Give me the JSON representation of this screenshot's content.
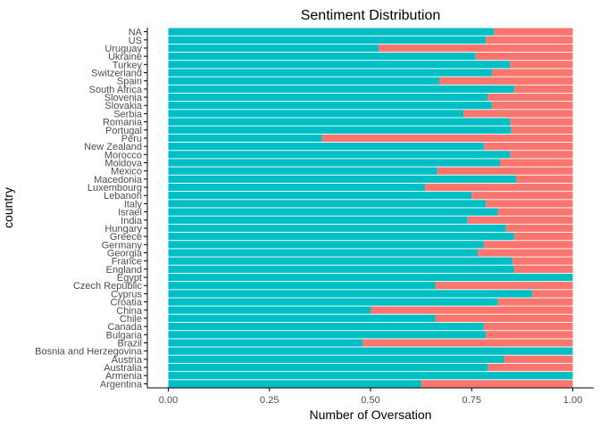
{
  "chart_data": {
    "type": "bar",
    "orientation": "horizontal",
    "stacked": true,
    "title": "Sentiment Distribution",
    "xlabel": "Number of Oversation",
    "ylabel": "country",
    "xlim": [
      0,
      1
    ],
    "xticks": [
      "0.00",
      "0.25",
      "0.50",
      "0.75",
      "1.00"
    ],
    "xtick_values": [
      0,
      0.25,
      0.5,
      0.75,
      1.0
    ],
    "grid": false,
    "colors": {
      "teal": "#00BFC4",
      "salmon": "#F8766D"
    },
    "categories": [
      "NA",
      "US",
      "Uruguay",
      "Ukraine",
      "Turkey",
      "Switzerland",
      "Spain",
      "South Africa",
      "Slovenia",
      "Slovakia",
      "Serbia",
      "Romania",
      "Portugal",
      "Peru",
      "New Zealand",
      "Morocco",
      "Moldova",
      "Mexico",
      "Macedonia",
      "Luxembourg",
      "Lebanon",
      "Italy",
      "Israel",
      "India",
      "Hungary",
      "Greece",
      "Germany",
      "Georgia",
      "France",
      "England",
      "Egypt",
      "Czech Republic",
      "Cyprus",
      "Croatia",
      "China",
      "Chile",
      "Canada",
      "Bulgaria",
      "Brazil",
      "Bosnia and Herzegovina",
      "Austria",
      "Australia",
      "Armenia",
      "Argentina"
    ],
    "values": [
      0.805,
      0.785,
      0.52,
      0.76,
      0.845,
      0.8,
      0.67,
      0.855,
      0.79,
      0.8,
      0.73,
      0.845,
      0.848,
      0.38,
      0.78,
      0.845,
      0.82,
      0.665,
      0.86,
      0.635,
      0.75,
      0.785,
      0.815,
      0.74,
      0.835,
      0.855,
      0.78,
      0.765,
      0.85,
      0.855,
      1.0,
      0.66,
      0.9,
      0.815,
      0.5,
      0.66,
      0.78,
      0.785,
      0.48,
      1.0,
      0.83,
      0.79,
      1.0,
      0.625
    ]
  }
}
